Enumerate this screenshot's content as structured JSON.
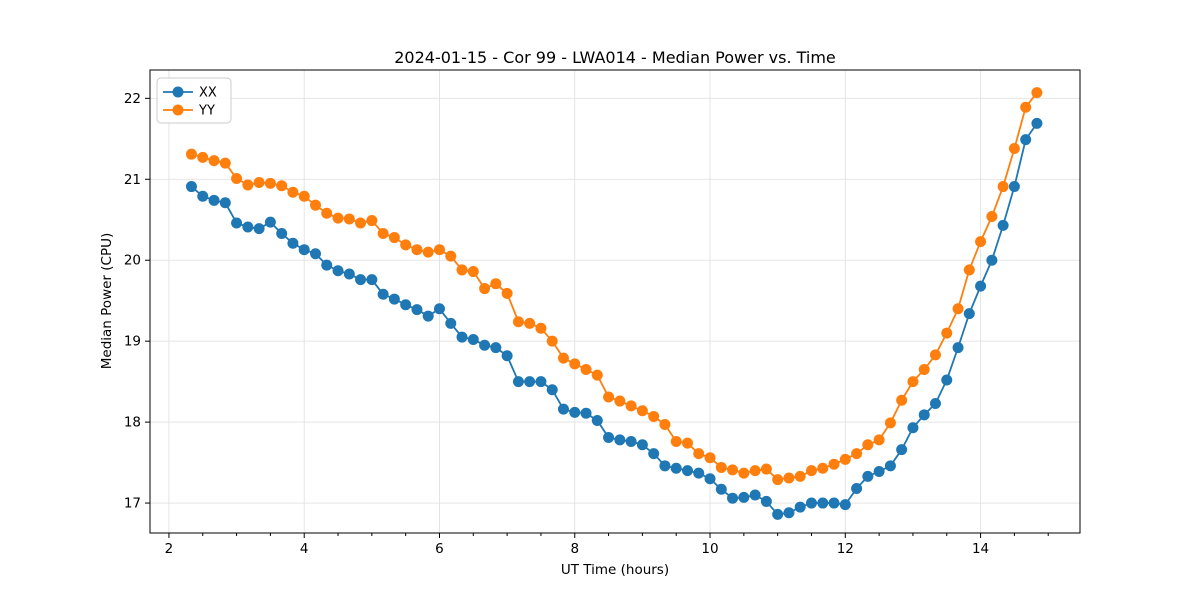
{
  "chart_data": {
    "type": "line",
    "title": "2024-01-15 - Cor 99 - LWA014 - Median Power vs. Time",
    "xlabel": "UT Time (hours)",
    "ylabel": "Median Power (CPU)",
    "xlim": [
      1.72,
      15.47
    ],
    "ylim": [
      16.63,
      22.35
    ],
    "x_major_ticks": [
      2,
      4,
      6,
      8,
      10,
      12,
      14
    ],
    "x_minor_step": 0.5,
    "y_major_ticks": [
      17,
      18,
      19,
      20,
      21,
      22
    ],
    "grid": true,
    "legend_position": "upper-left",
    "marker": "circle",
    "x": [
      2.333,
      2.5,
      2.667,
      2.833,
      3,
      3.167,
      3.333,
      3.5,
      3.667,
      3.833,
      4,
      4.167,
      4.333,
      4.5,
      4.667,
      4.833,
      5,
      5.167,
      5.333,
      5.5,
      5.667,
      5.833,
      6,
      6.167,
      6.333,
      6.5,
      6.667,
      6.833,
      7,
      7.167,
      7.333,
      7.5,
      7.667,
      7.833,
      8,
      8.167,
      8.333,
      8.5,
      8.667,
      8.833,
      9,
      9.167,
      9.333,
      9.5,
      9.667,
      9.833,
      10,
      10.167,
      10.333,
      10.5,
      10.667,
      10.833,
      11,
      11.167,
      11.333,
      11.5,
      11.667,
      11.833,
      12,
      12.167,
      12.333,
      12.5,
      12.667,
      12.833,
      13,
      13.167,
      13.333,
      13.5,
      13.667,
      13.833,
      14,
      14.167,
      14.333,
      14.5,
      14.667,
      14.833
    ],
    "series": [
      {
        "name": "XX",
        "color": "#1f77b4",
        "values": [
          20.91,
          20.79,
          20.74,
          20.71,
          20.46,
          20.41,
          20.39,
          20.47,
          20.33,
          20.21,
          20.13,
          20.08,
          19.94,
          19.87,
          19.83,
          19.76,
          19.76,
          19.58,
          19.52,
          19.45,
          19.39,
          19.31,
          19.4,
          19.22,
          19.05,
          19.02,
          18.95,
          18.92,
          18.82,
          18.5,
          18.5,
          18.5,
          18.4,
          18.16,
          18.12,
          18.11,
          18.02,
          17.81,
          17.78,
          17.76,
          17.72,
          17.61,
          17.46,
          17.43,
          17.4,
          17.37,
          17.3,
          17.17,
          17.06,
          17.07,
          17.1,
          17.02,
          16.86,
          16.88,
          16.95,
          17,
          17,
          17,
          16.98,
          17.18,
          17.33,
          17.39,
          17.46,
          17.66,
          17.93,
          18.09,
          18.23,
          18.52,
          18.92,
          19.34,
          19.68,
          20,
          20.43,
          20.91,
          21.49,
          21.69
        ]
      },
      {
        "name": "YY",
        "color": "#ff7f0e",
        "values": [
          21.31,
          21.27,
          21.23,
          21.2,
          21.01,
          20.93,
          20.96,
          20.95,
          20.92,
          20.84,
          20.79,
          20.68,
          20.58,
          20.52,
          20.51,
          20.46,
          20.49,
          20.33,
          20.28,
          20.19,
          20.13,
          20.1,
          20.13,
          20.05,
          19.88,
          19.86,
          19.65,
          19.71,
          19.59,
          19.24,
          19.22,
          19.16,
          19,
          18.79,
          18.72,
          18.65,
          18.58,
          18.31,
          18.26,
          18.2,
          18.14,
          18.07,
          17.97,
          17.76,
          17.74,
          17.61,
          17.56,
          17.44,
          17.41,
          17.37,
          17.4,
          17.42,
          17.29,
          17.31,
          17.33,
          17.4,
          17.43,
          17.48,
          17.54,
          17.61,
          17.72,
          17.78,
          17.99,
          18.27,
          18.5,
          18.65,
          18.83,
          19.1,
          19.4,
          19.88,
          20.23,
          20.54,
          20.91,
          21.38,
          21.89,
          22.07
        ]
      }
    ]
  },
  "colors": {
    "xx_series": "#1f77b4",
    "yy_series": "#ff7f0e",
    "grid": "#e2e2e2",
    "text": "#000000"
  }
}
